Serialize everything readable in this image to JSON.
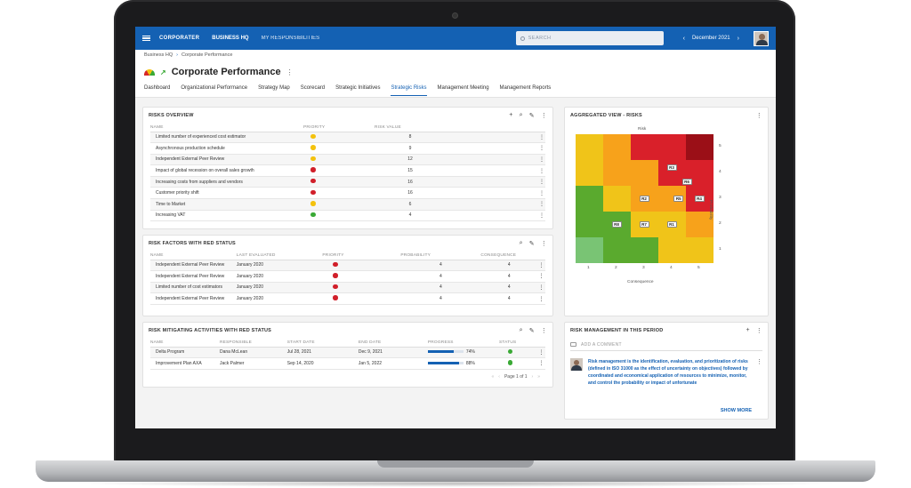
{
  "app": {
    "logo": "CORPORATER",
    "nav_primary": "BUSINESS HQ",
    "nav_secondary": "MY RESPONSIBILITIES",
    "search_placeholder": "SEARCH",
    "period": "December 2021",
    "prev_glyph": "‹",
    "next_glyph": "›",
    "accent": "#1461b3"
  },
  "breadcrumb": {
    "root": "Business HQ",
    "sep": "›",
    "current": "Corporate Performance"
  },
  "page": {
    "title": "Corporate Performance",
    "kebab": "⋮",
    "trend_glyph": "↗",
    "tabs": [
      "Dashboard",
      "Organizational Performance",
      "Strategy Map",
      "Scorecard",
      "Strategic Initiatives",
      "Strategic Risks",
      "Management Meeting",
      "Management Reports"
    ],
    "active_tab": "Strategic Risks"
  },
  "icons": {
    "add": "+",
    "search": "⌕",
    "edit": "✎",
    "more": "⋮"
  },
  "risks_overview": {
    "title": "RISKS OVERVIEW",
    "columns": [
      "NAME",
      "PRIORITY",
      "RISK VALUE"
    ],
    "rows": [
      {
        "name": "Limited number of experienced cost estimator",
        "priority": "#f4c20d",
        "value": "8"
      },
      {
        "name": "Asynchronous production schedule",
        "priority": "#f4c20d",
        "value": "9"
      },
      {
        "name": "Independent External Peer Review",
        "priority": "#f4c20d",
        "value": "12"
      },
      {
        "name": "Impact of global recession on overall sales growth",
        "priority": "#d11f2a",
        "value": "15"
      },
      {
        "name": "Increasing costs from suppliers and vendors",
        "priority": "#d11f2a",
        "value": "16"
      },
      {
        "name": "Customer priority shift",
        "priority": "#d11f2a",
        "value": "16"
      },
      {
        "name": "Time to Market",
        "priority": "#f4c20d",
        "value": "6"
      },
      {
        "name": "Increasing VAT",
        "priority": "#3aa935",
        "value": "4"
      }
    ]
  },
  "risk_factors": {
    "title": "RISK FACTORS WITH RED STATUS",
    "columns": [
      "NAME",
      "LAST EVALUATED",
      "PRIORITY",
      "PROBABILITY",
      "CONSEQUENCE"
    ],
    "rows": [
      {
        "name": "Independent External Peer Review",
        "date": "January 2020",
        "priority": "#d11f2a",
        "probability": "4",
        "consequence": "4"
      },
      {
        "name": "Independent External Peer Review",
        "date": "January 2020",
        "priority": "#d11f2a",
        "probability": "4",
        "consequence": "4"
      },
      {
        "name": "Limited number of cost estimators",
        "date": "January 2020",
        "priority": "#d11f2a",
        "probability": "4",
        "consequence": "4"
      },
      {
        "name": "Independent External Peer Review",
        "date": "January 2020",
        "priority": "#d11f2a",
        "probability": "4",
        "consequence": "4"
      }
    ]
  },
  "mitigating": {
    "title": "RISK MITIGATING ACTIVITIES WITH RED STATUS",
    "columns": [
      "NAME",
      "RESPONSIBLE",
      "START DATE",
      "END DATE",
      "PROGRESS",
      "STATUS"
    ],
    "rows": [
      {
        "name": "Delta Program",
        "responsible": "Dana McLean",
        "start": "Jul 28, 2021",
        "end": "Dec 9, 2021",
        "progress": 74,
        "progress_label": "74%",
        "status": "#3aa935"
      },
      {
        "name": "Improvement Plan AXA",
        "responsible": "Jack Palmer",
        "start": "Sep 14, 2020",
        "end": "Jan 5, 2022",
        "progress": 88,
        "progress_label": "88%",
        "status": "#3aa935"
      }
    ],
    "pager": "Page 1 of 1"
  },
  "aggregated": {
    "title": "AGGREGATED VIEW - RISKS",
    "top_label": "Risk",
    "x_label": "Consequence",
    "y_label": "Probability",
    "x_ticks": [
      "1",
      "2",
      "3",
      "4",
      "5"
    ],
    "y_ticks": [
      "5",
      "4",
      "3",
      "2",
      "1"
    ],
    "grid": [
      [
        "#f0c419",
        "#f7a21b",
        "#d9202a",
        "#d9202a",
        "#9b0f17"
      ],
      [
        "#f0c419",
        "#f7a21b",
        "#f7a21b",
        "#d9202a",
        "#d9202a"
      ],
      [
        "#5aaa2e",
        "#f0c419",
        "#f7a21b",
        "#f7a21b",
        "#d9202a"
      ],
      [
        "#5aaa2e",
        "#5aaa2e",
        "#f0c419",
        "#f0c419",
        "#f7a21b"
      ],
      [
        "#79c474",
        "#5aaa2e",
        "#5aaa2e",
        "#f0c419",
        "#f0c419"
      ]
    ],
    "markers": [
      {
        "label": "R3",
        "row": 1,
        "col": 3,
        "dx": 0.0,
        "dy": -0.2
      },
      {
        "label": "R6",
        "row": 1,
        "col": 3,
        "dx": 0.55,
        "dy": 0.35
      },
      {
        "label": "R2",
        "row": 2,
        "col": 2,
        "dx": 0.0,
        "dy": 0.0
      },
      {
        "label": "R5",
        "row": 2,
        "col": 3,
        "dx": 0.25,
        "dy": 0.0
      },
      {
        "label": "R4",
        "row": 2,
        "col": 4,
        "dx": 0.0,
        "dy": 0.0
      },
      {
        "label": "R8",
        "row": 3,
        "col": 1,
        "dx": 0.0,
        "dy": 0.0
      },
      {
        "label": "R7",
        "row": 3,
        "col": 2,
        "dx": 0.0,
        "dy": 0.0
      },
      {
        "label": "R1",
        "row": 3,
        "col": 3,
        "dx": 0.0,
        "dy": 0.0
      }
    ]
  },
  "risk_mgmt": {
    "title": "RISK MANAGEMENT IN THIS PERIOD",
    "comment_placeholder": "ADD A COMMENT",
    "note": "Risk management is the identification, evaluation, and prioritization of risks (defined in ISO 31000 as the effect of uncertainty on objectives) followed by coordinated and economical application of resources to minimize, monitor, and control the probability or impact of unfortunate",
    "show_more": "SHOW MORE"
  }
}
